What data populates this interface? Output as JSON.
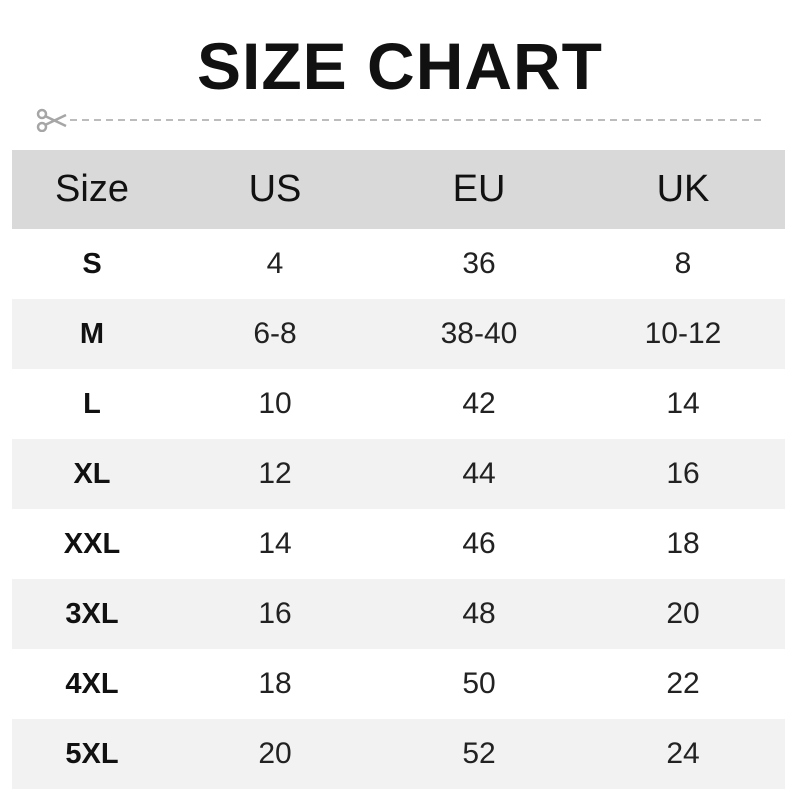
{
  "title": "SIZE CHART",
  "icons": {
    "cut": "scissors-icon"
  },
  "colors": {
    "header_bg": "#d9d9d9",
    "alt_row_bg": "#f2f2f2",
    "cut_line": "#a6a6a6"
  },
  "table": {
    "headers": [
      "Size",
      "US",
      "EU",
      "UK"
    ],
    "rows": [
      [
        "S",
        "4",
        "36",
        "8"
      ],
      [
        "M",
        "6-8",
        "38-40",
        "10-12"
      ],
      [
        "L",
        "10",
        "42",
        "14"
      ],
      [
        "XL",
        "12",
        "44",
        "16"
      ],
      [
        "XXL",
        "14",
        "46",
        "18"
      ],
      [
        "3XL",
        "16",
        "48",
        "20"
      ],
      [
        "4XL",
        "18",
        "50",
        "22"
      ],
      [
        "5XL",
        "20",
        "52",
        "24"
      ]
    ]
  }
}
